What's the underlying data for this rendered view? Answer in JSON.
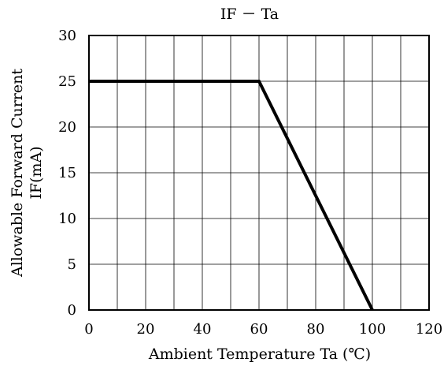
{
  "chart_data": {
    "type": "line",
    "title": "IF － Ta",
    "xlabel": "Ambient Temperature Ta (℃)",
    "ylabel_lines": [
      "Allowable Forward Current",
      "IF(mA)"
    ],
    "xlim": [
      0,
      120
    ],
    "ylim": [
      0,
      30
    ],
    "x_ticks": [
      0,
      10,
      20,
      30,
      40,
      50,
      60,
      70,
      80,
      90,
      100,
      110,
      120
    ],
    "x_tick_labels": [
      "0",
      "",
      "20",
      "",
      "40",
      "",
      "60",
      "",
      "80",
      "",
      "100",
      "",
      "120"
    ],
    "y_ticks": [
      0,
      5,
      10,
      15,
      20,
      25,
      30
    ],
    "y_tick_labels": [
      "0",
      "5",
      "10",
      "15",
      "20",
      "25",
      "30"
    ],
    "grid": true,
    "series": [
      {
        "x": [
          0,
          60,
          100
        ],
        "y": [
          25,
          25,
          0
        ]
      }
    ]
  }
}
